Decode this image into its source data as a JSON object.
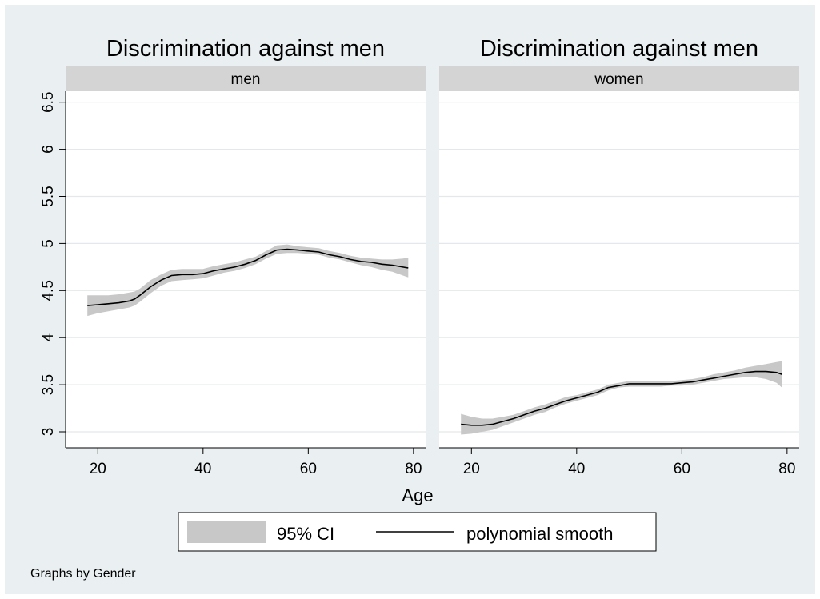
{
  "chart_data": {
    "type": "line",
    "xlabel": "Age",
    "note": "Graphs by Gender",
    "xlim": [
      16,
      82
    ],
    "ylim": [
      2.95,
      6.5
    ],
    "xticks": [
      20,
      40,
      60,
      80
    ],
    "yticks": [
      3,
      3.5,
      4,
      4.5,
      5,
      5.5,
      6,
      6.5
    ],
    "ytick_labels": [
      "3",
      "3.5",
      "4",
      "4.5",
      "5",
      "5.5",
      "6",
      "6.5"
    ],
    "grid": true,
    "legend": {
      "placement": "bottom",
      "entries": [
        {
          "label": "95% CI",
          "kind": "band",
          "color": "#c8c8c8"
        },
        {
          "label": "polynomial smooth",
          "kind": "line",
          "color": "#000000"
        }
      ]
    },
    "panels": [
      {
        "title": "Discrimination against men",
        "strip": "men",
        "x": [
          18,
          20,
          22,
          24,
          26,
          27,
          28,
          30,
          32,
          34,
          36,
          38,
          40,
          42,
          44,
          46,
          48,
          50,
          52,
          54,
          56,
          58,
          60,
          62,
          64,
          66,
          68,
          70,
          72,
          74,
          76,
          78,
          79
        ],
        "y": [
          4.34,
          4.35,
          4.36,
          4.37,
          4.39,
          4.41,
          4.45,
          4.54,
          4.61,
          4.66,
          4.67,
          4.67,
          4.68,
          4.71,
          4.73,
          4.75,
          4.78,
          4.82,
          4.88,
          4.93,
          4.94,
          4.93,
          4.92,
          4.91,
          4.88,
          4.86,
          4.83,
          4.81,
          4.8,
          4.78,
          4.77,
          4.75,
          4.74
        ],
        "lower": [
          4.23,
          4.26,
          4.28,
          4.3,
          4.32,
          4.34,
          4.38,
          4.47,
          4.55,
          4.6,
          4.61,
          4.62,
          4.63,
          4.66,
          4.69,
          4.71,
          4.74,
          4.78,
          4.84,
          4.89,
          4.9,
          4.9,
          4.89,
          4.88,
          4.85,
          4.83,
          4.8,
          4.77,
          4.75,
          4.72,
          4.7,
          4.66,
          4.64
        ],
        "upper": [
          4.45,
          4.45,
          4.45,
          4.46,
          4.48,
          4.49,
          4.52,
          4.61,
          4.67,
          4.72,
          4.73,
          4.73,
          4.73,
          4.76,
          4.78,
          4.8,
          4.83,
          4.86,
          4.92,
          4.98,
          4.99,
          4.97,
          4.96,
          4.95,
          4.92,
          4.9,
          4.87,
          4.85,
          4.84,
          4.83,
          4.83,
          4.84,
          4.85
        ]
      },
      {
        "title": "Discrimination against men",
        "strip": "women",
        "x": [
          18,
          20,
          22,
          24,
          26,
          28,
          30,
          32,
          34,
          36,
          38,
          40,
          42,
          44,
          46,
          48,
          50,
          52,
          54,
          56,
          58,
          60,
          62,
          64,
          66,
          68,
          70,
          72,
          74,
          76,
          78,
          79
        ],
        "y": [
          3.08,
          3.07,
          3.07,
          3.08,
          3.11,
          3.14,
          3.18,
          3.22,
          3.25,
          3.29,
          3.33,
          3.36,
          3.39,
          3.42,
          3.47,
          3.49,
          3.51,
          3.51,
          3.51,
          3.51,
          3.51,
          3.52,
          3.53,
          3.55,
          3.57,
          3.59,
          3.61,
          3.63,
          3.64,
          3.64,
          3.63,
          3.61
        ],
        "lower": [
          2.97,
          2.98,
          3.0,
          3.02,
          3.06,
          3.1,
          3.14,
          3.18,
          3.21,
          3.26,
          3.3,
          3.33,
          3.36,
          3.39,
          3.44,
          3.47,
          3.48,
          3.48,
          3.48,
          3.48,
          3.49,
          3.49,
          3.5,
          3.52,
          3.54,
          3.56,
          3.57,
          3.58,
          3.58,
          3.56,
          3.52,
          3.47
        ],
        "upper": [
          3.19,
          3.16,
          3.14,
          3.14,
          3.16,
          3.18,
          3.22,
          3.26,
          3.29,
          3.33,
          3.37,
          3.39,
          3.42,
          3.45,
          3.5,
          3.52,
          3.54,
          3.54,
          3.54,
          3.54,
          3.54,
          3.55,
          3.56,
          3.58,
          3.61,
          3.63,
          3.65,
          3.68,
          3.7,
          3.72,
          3.74,
          3.75
        ]
      }
    ]
  }
}
